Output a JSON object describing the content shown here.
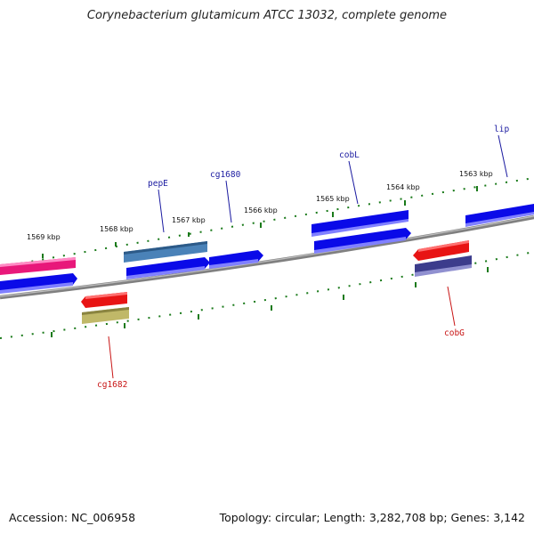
{
  "title": "Corynebacterium glutamicum ATCC 13032, complete genome",
  "footer": {
    "accession": "Accession: NC_006958",
    "summary": "Topology: circular; Length: 3,282,708 bp; Genes: 3,142"
  },
  "colors": {
    "forward_gene": "#0a0ae8",
    "pink_gene": "#e8187a",
    "steel_gene": "#4a82b8",
    "red_gene": "#e81414",
    "olive_gene": "#c0b868",
    "navy_gene": "#3c3c8c",
    "tick": "#1a7a1a",
    "backbone": "#808080",
    "label_forward": "#1a1aa0",
    "label_reverse": "#c81414"
  },
  "kbp_labels": [
    "1563 kbp",
    "1564 kbp",
    "1565 kbp",
    "1566 kbp",
    "1567 kbp",
    "1568 kbp",
    "1569 kbp"
  ],
  "gene_labels": {
    "lip": "lip",
    "cobL": "cobL",
    "cg1680": "cg1680",
    "pepE": "pepE",
    "cobG": "cobG",
    "cg1682": "cg1682"
  }
}
